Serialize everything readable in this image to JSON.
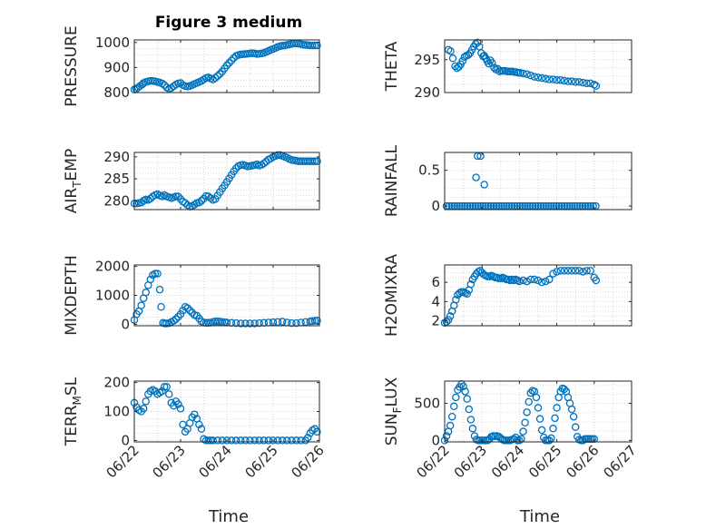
{
  "figure": {
    "title": "Figure 3 medium",
    "xlabel_left": "Time",
    "xlabel_right": "Time"
  },
  "colors": {
    "marker": "#0072BD",
    "axis": "#262626",
    "grid": "#D9D9D9"
  },
  "chart_data": [
    {
      "type": "scatter",
      "ylabel": "PRESSURE",
      "ylabel_sub": "",
      "ylabel_post": "",
      "ylim": [
        800,
        1010
      ],
      "yticks": [
        800,
        900,
        1000
      ],
      "xlim": [
        "06/22",
        "06/26"
      ],
      "xticks": [
        "06/22",
        "06/23",
        "06/24",
        "06/25",
        "06/26"
      ],
      "x": [
        0.0,
        0.04,
        0.08,
        0.12,
        0.17,
        0.2,
        0.25,
        0.3,
        0.35,
        0.4,
        0.45,
        0.5,
        0.55,
        0.6,
        0.65,
        0.7,
        0.75,
        0.8,
        0.85,
        0.9,
        0.95,
        1.0,
        1.05,
        1.1,
        1.15,
        1.2,
        1.25,
        1.3,
        1.35,
        1.4,
        1.45,
        1.5,
        1.55,
        1.6,
        1.65,
        1.7,
        1.75,
        1.8,
        1.85,
        1.9,
        1.95,
        2.0,
        2.05,
        2.1,
        2.15,
        2.2,
        2.25,
        2.3,
        2.35,
        2.4,
        2.45,
        2.5,
        2.55,
        2.6,
        2.65,
        2.7,
        2.75,
        2.8,
        2.85,
        2.9,
        2.95,
        3.0,
        3.05,
        3.1,
        3.15,
        3.2,
        3.25,
        3.3,
        3.35,
        3.4,
        3.45,
        3.5,
        3.55,
        3.6,
        3.65,
        3.7,
        3.75,
        3.8,
        3.85,
        3.9,
        3.95
      ],
      "y": [
        812,
        815,
        820,
        826,
        832,
        838,
        842,
        845,
        846,
        846,
        845,
        842,
        840,
        836,
        830,
        820,
        815,
        818,
        825,
        832,
        836,
        838,
        830,
        826,
        824,
        826,
        830,
        834,
        838,
        842,
        846,
        852,
        858,
        860,
        856,
        852,
        858,
        866,
        874,
        884,
        896,
        908,
        918,
        928,
        938,
        946,
        950,
        952,
        953,
        954,
        955,
        956,
        957,
        956,
        954,
        955,
        956,
        958,
        962,
        966,
        970,
        974,
        978,
        982,
        985,
        987,
        988,
        990,
        992,
        994,
        996,
        996,
        995,
        993,
        991,
        990,
        989,
        988,
        988,
        988,
        988
      ]
    },
    {
      "type": "scatter",
      "ylabel": "THETA",
      "ylabel_sub": "",
      "ylabel_post": "",
      "ylim": [
        290,
        298
      ],
      "yticks": [
        290,
        295
      ],
      "xlim": [
        "06/22",
        "06/27"
      ],
      "xticks": [
        "06/22",
        "06/23",
        "06/24",
        "06/25",
        "06/26",
        "06/27"
      ],
      "x": [
        0.1,
        0.16,
        0.22,
        0.28,
        0.33,
        0.38,
        0.43,
        0.48,
        0.53,
        0.58,
        0.63,
        0.68,
        0.73,
        0.78,
        0.83,
        0.88,
        0.93,
        0.98,
        1.03,
        1.06,
        1.1,
        1.14,
        1.18,
        1.22,
        1.27,
        1.32,
        1.37,
        1.42,
        1.47,
        1.52,
        1.57,
        1.62,
        1.67,
        1.72,
        1.77,
        1.82,
        1.87,
        1.92,
        1.97,
        2.02,
        2.1,
        2.2,
        2.3,
        2.4,
        2.5,
        2.6,
        2.7,
        2.8,
        2.9,
        3.0,
        3.1,
        3.2,
        3.3,
        3.4,
        3.5,
        3.6,
        3.7,
        3.8,
        3.9,
        4.0,
        4.05
      ],
      "y": [
        296.5,
        296.3,
        295.2,
        294.0,
        293.7,
        293.9,
        294.3,
        294.8,
        295.4,
        295.6,
        295.7,
        296.0,
        296.5,
        297.0,
        297.4,
        297.6,
        297.0,
        296.0,
        295.5,
        295.6,
        295.2,
        294.8,
        294.4,
        294.9,
        294.5,
        293.8,
        293.5,
        293.6,
        293.2,
        293.3,
        293.3,
        293.3,
        293.2,
        293.2,
        293.2,
        293.2,
        293.1,
        293.1,
        293.0,
        293.0,
        292.9,
        292.8,
        292.6,
        292.4,
        292.3,
        292.2,
        292.1,
        292.0,
        292.0,
        291.9,
        291.9,
        291.8,
        291.7,
        291.7,
        291.6,
        291.6,
        291.5,
        291.4,
        291.4,
        291.2,
        291.0
      ]
    },
    {
      "type": "scatter",
      "ylabel": "AIR",
      "ylabel_sub": "T",
      "ylabel_post": "EMP",
      "ylim": [
        278,
        291
      ],
      "yticks": [
        280,
        285,
        290
      ],
      "xlim": [
        "06/22",
        "06/26"
      ],
      "xticks": [
        "06/22",
        "06/23",
        "06/24",
        "06/25",
        "06/26"
      ],
      "x": [
        0.0,
        0.05,
        0.1,
        0.15,
        0.2,
        0.25,
        0.3,
        0.35,
        0.4,
        0.45,
        0.5,
        0.55,
        0.6,
        0.65,
        0.7,
        0.75,
        0.8,
        0.85,
        0.9,
        0.95,
        1.0,
        1.05,
        1.1,
        1.15,
        1.2,
        1.25,
        1.3,
        1.35,
        1.4,
        1.45,
        1.5,
        1.55,
        1.6,
        1.65,
        1.7,
        1.75,
        1.8,
        1.85,
        1.9,
        1.95,
        2.0,
        2.05,
        2.1,
        2.15,
        2.2,
        2.25,
        2.3,
        2.35,
        2.4,
        2.45,
        2.5,
        2.55,
        2.6,
        2.65,
        2.7,
        2.75,
        2.8,
        2.85,
        2.9,
        2.95,
        3.0,
        3.05,
        3.1,
        3.15,
        3.2,
        3.25,
        3.3,
        3.35,
        3.4,
        3.45,
        3.5,
        3.55,
        3.6,
        3.65,
        3.7,
        3.75,
        3.8,
        3.85,
        3.9,
        3.95
      ],
      "y": [
        279.4,
        279.4,
        279.5,
        279.6,
        280.0,
        280.3,
        280.2,
        280.5,
        281.0,
        281.3,
        281.5,
        281.2,
        281.0,
        281.3,
        281.0,
        280.8,
        280.6,
        280.8,
        281.0,
        281.0,
        280.4,
        279.8,
        279.5,
        279.0,
        278.7,
        278.8,
        279.1,
        279.5,
        279.6,
        280.0,
        280.5,
        281.1,
        281.0,
        280.6,
        280.2,
        280.4,
        281.2,
        282.0,
        282.8,
        283.5,
        284.3,
        285.1,
        285.9,
        286.7,
        287.4,
        287.9,
        288.1,
        288.2,
        288.0,
        287.8,
        287.9,
        288.0,
        288.1,
        288.3,
        288.0,
        288.2,
        288.5,
        288.9,
        289.4,
        289.6,
        290.0,
        290.2,
        290.4,
        290.4,
        290.2,
        290.0,
        289.8,
        289.5,
        289.3,
        289.2,
        289.1,
        289.0,
        289.0,
        289.0,
        289.0,
        289.0,
        289.0,
        289.0,
        289.0,
        289.0
      ]
    },
    {
      "type": "scatter",
      "ylabel": "RAINFALL",
      "ylabel_sub": "",
      "ylabel_post": "",
      "ylim": [
        -0.05,
        0.75
      ],
      "yticks": [
        0,
        0.5
      ],
      "xlim": [
        "06/22",
        "06/27"
      ],
      "xticks": [
        "06/22",
        "06/23",
        "06/24",
        "06/25",
        "06/26",
        "06/27"
      ],
      "x": [
        0.05,
        0.12,
        0.19,
        0.26,
        0.33,
        0.4,
        0.47,
        0.54,
        0.61,
        0.68,
        0.75,
        0.82,
        0.89,
        0.96,
        1.03,
        1.1,
        1.17,
        1.24,
        1.31,
        1.38,
        1.45,
        1.52,
        1.59,
        1.66,
        1.73,
        1.8,
        1.87,
        1.94,
        2.01,
        2.08,
        2.15,
        2.22,
        2.29,
        2.36,
        2.43,
        2.5,
        2.57,
        2.64,
        2.71,
        2.78,
        2.85,
        2.92,
        2.99,
        3.06,
        3.13,
        3.2,
        3.27,
        3.34,
        3.41,
        3.48,
        3.55,
        3.62,
        3.69,
        3.76,
        3.83,
        3.9,
        3.97,
        4.04,
        0.84,
        0.88,
        0.96,
        1.06
      ],
      "y": [
        0,
        0,
        0,
        0,
        0,
        0,
        0,
        0,
        0,
        0,
        0,
        0,
        0,
        0,
        0,
        0,
        0,
        0,
        0,
        0,
        0,
        0,
        0,
        0,
        0,
        0,
        0,
        0,
        0,
        0,
        0,
        0,
        0,
        0,
        0,
        0,
        0,
        0,
        0,
        0,
        0,
        0,
        0,
        0,
        0,
        0,
        0,
        0,
        0,
        0,
        0,
        0,
        0,
        0,
        0,
        0,
        0,
        0,
        0.4,
        0.7,
        0.7,
        0.3
      ]
    },
    {
      "type": "scatter",
      "ylabel": "MIXDEPTH",
      "ylabel_sub": "",
      "ylabel_post": "",
      "ylim": [
        -50,
        2050
      ],
      "yticks": [
        0,
        1000,
        2000
      ],
      "xlim": [
        "06/22",
        "06/26"
      ],
      "xticks": [
        "06/22",
        "06/23",
        "06/24",
        "06/25",
        "06/26"
      ],
      "x": [
        0.0,
        0.05,
        0.1,
        0.15,
        0.2,
        0.25,
        0.3,
        0.35,
        0.4,
        0.45,
        0.5,
        0.55,
        0.58,
        0.62,
        0.66,
        0.7,
        0.75,
        0.8,
        0.85,
        0.9,
        0.95,
        1.0,
        1.05,
        1.1,
        1.15,
        1.2,
        1.25,
        1.3,
        1.35,
        1.4,
        1.45,
        1.5,
        1.55,
        1.6,
        1.65,
        1.7,
        1.75,
        1.8,
        1.85,
        1.9,
        1.95,
        2.0,
        2.1,
        2.2,
        2.3,
        2.4,
        2.5,
        2.6,
        2.7,
        2.8,
        2.9,
        3.0,
        3.1,
        3.2,
        3.3,
        3.4,
        3.5,
        3.6,
        3.7,
        3.8,
        3.85,
        3.9,
        3.95
      ],
      "y": [
        150,
        350,
        450,
        650,
        900,
        1100,
        1350,
        1550,
        1700,
        1750,
        1750,
        1200,
        600,
        50,
        30,
        30,
        40,
        80,
        120,
        180,
        260,
        350,
        480,
        600,
        560,
        480,
        400,
        320,
        300,
        200,
        100,
        60,
        50,
        50,
        60,
        80,
        100,
        100,
        90,
        80,
        70,
        60,
        50,
        40,
        30,
        30,
        30,
        30,
        40,
        50,
        60,
        70,
        80,
        90,
        60,
        40,
        40,
        60,
        80,
        100,
        110,
        120,
        130
      ]
    },
    {
      "type": "scatter",
      "ylabel": "H2OMIXRA",
      "ylabel_sub": "",
      "ylabel_post": "",
      "ylim": [
        1.5,
        7.8
      ],
      "yticks": [
        2,
        4,
        6
      ],
      "xlim": [
        "06/22",
        "06/27"
      ],
      "xticks": [
        "06/22",
        "06/23",
        "06/24",
        "06/25",
        "06/26",
        "06/27"
      ],
      "x": [
        0.0,
        0.05,
        0.1,
        0.15,
        0.2,
        0.25,
        0.3,
        0.35,
        0.4,
        0.45,
        0.5,
        0.55,
        0.6,
        0.65,
        0.7,
        0.75,
        0.8,
        0.85,
        0.9,
        0.95,
        1.0,
        1.05,
        1.1,
        1.15,
        1.2,
        1.25,
        1.3,
        1.35,
        1.4,
        1.45,
        1.5,
        1.55,
        1.6,
        1.65,
        1.7,
        1.75,
        1.8,
        1.85,
        1.9,
        1.95,
        2.0,
        2.1,
        2.2,
        2.3,
        2.4,
        2.5,
        2.6,
        2.7,
        2.8,
        2.9,
        3.0,
        3.1,
        3.2,
        3.3,
        3.4,
        3.5,
        3.6,
        3.7,
        3.8,
        3.9,
        4.0,
        4.05
      ],
      "y": [
        1.8,
        1.9,
        2.1,
        2.5,
        3.0,
        3.6,
        4.2,
        4.7,
        4.9,
        5.0,
        5.0,
        4.9,
        4.8,
        5.2,
        5.8,
        6.3,
        6.6,
        6.9,
        7.1,
        7.2,
        7.0,
        6.8,
        6.7,
        6.6,
        6.6,
        6.7,
        6.6,
        6.5,
        6.5,
        6.4,
        6.4,
        6.5,
        6.4,
        6.3,
        6.3,
        6.2,
        6.3,
        6.2,
        6.3,
        6.2,
        6.1,
        6.2,
        6.1,
        6.3,
        6.3,
        6.2,
        6.0,
        6.1,
        6.3,
        6.9,
        7.1,
        7.2,
        7.2,
        7.2,
        7.2,
        7.2,
        7.2,
        7.1,
        7.2,
        7.2,
        6.5,
        6.2
      ]
    },
    {
      "type": "scatter",
      "ylabel": "TERR",
      "ylabel_sub": "M",
      "ylabel_post": "SL",
      "ylim": [
        -5,
        205
      ],
      "yticks": [
        0,
        100,
        200
      ],
      "xlim": [
        "06/22",
        "06/26"
      ],
      "xticks": [
        "06/22",
        "06/23",
        "06/24",
        "06/25",
        "06/26"
      ],
      "x": [
        0.0,
        0.05,
        0.1,
        0.15,
        0.2,
        0.25,
        0.3,
        0.35,
        0.4,
        0.45,
        0.5,
        0.55,
        0.6,
        0.65,
        0.7,
        0.75,
        0.8,
        0.85,
        0.9,
        0.95,
        1.0,
        1.05,
        1.1,
        1.15,
        1.2,
        1.25,
        1.3,
        1.35,
        1.4,
        1.45,
        1.5,
        1.55,
        1.6,
        1.65,
        1.7,
        1.8,
        1.9,
        2.0,
        2.1,
        2.2,
        2.3,
        2.4,
        2.5,
        2.6,
        2.7,
        2.8,
        2.9,
        3.0,
        3.1,
        3.2,
        3.3,
        3.4,
        3.5,
        3.6,
        3.7,
        3.75,
        3.8,
        3.85,
        3.9,
        3.95
      ],
      "y": [
        130,
        115,
        105,
        100,
        110,
        135,
        160,
        170,
        175,
        170,
        160,
        165,
        170,
        185,
        185,
        160,
        130,
        120,
        135,
        125,
        110,
        55,
        30,
        40,
        60,
        80,
        90,
        75,
        55,
        40,
        5,
        0,
        0,
        0,
        0,
        0,
        0,
        0,
        0,
        0,
        0,
        0,
        0,
        0,
        0,
        0,
        0,
        0,
        0,
        0,
        0,
        0,
        0,
        0,
        0,
        10,
        25,
        35,
        40,
        30
      ]
    },
    {
      "type": "scatter",
      "ylabel": "SUN",
      "ylabel_sub": "F",
      "ylabel_post": "LUX",
      "ylim": [
        -20,
        800
      ],
      "yticks": [
        0,
        500
      ],
      "xlim": [
        "06/22",
        "06/27"
      ],
      "xticks": [
        "06/22",
        "06/23",
        "06/24",
        "06/25",
        "06/26",
        "06/27"
      ],
      "x": [
        0.0,
        0.05,
        0.1,
        0.15,
        0.2,
        0.25,
        0.3,
        0.35,
        0.4,
        0.45,
        0.5,
        0.55,
        0.6,
        0.65,
        0.7,
        0.75,
        0.8,
        0.85,
        0.9,
        0.95,
        1.0,
        1.05,
        1.1,
        1.15,
        1.2,
        1.25,
        1.3,
        1.35,
        1.4,
        1.45,
        1.5,
        1.55,
        1.6,
        1.65,
        1.7,
        1.75,
        1.8,
        1.85,
        1.9,
        1.95,
        2.0,
        2.05,
        2.1,
        2.15,
        2.2,
        2.25,
        2.3,
        2.35,
        2.4,
        2.45,
        2.5,
        2.55,
        2.6,
        2.65,
        2.7,
        2.75,
        2.8,
        2.85,
        2.9,
        2.95,
        3.0,
        3.05,
        3.1,
        3.15,
        3.2,
        3.25,
        3.3,
        3.35,
        3.4,
        3.45,
        3.5,
        3.55,
        3.6,
        3.65,
        3.7,
        3.75,
        3.8,
        3.85,
        3.9,
        3.95,
        4.0
      ],
      "y": [
        0,
        60,
        120,
        200,
        320,
        460,
        580,
        680,
        720,
        760,
        730,
        660,
        560,
        420,
        280,
        160,
        60,
        10,
        0,
        0,
        0,
        0,
        0,
        0,
        20,
        50,
        60,
        55,
        60,
        50,
        30,
        10,
        0,
        0,
        0,
        0,
        10,
        20,
        40,
        0,
        0,
        20,
        120,
        240,
        380,
        520,
        640,
        670,
        660,
        580,
        440,
        290,
        140,
        40,
        0,
        0,
        0,
        30,
        160,
        300,
        440,
        580,
        660,
        700,
        690,
        660,
        580,
        500,
        420,
        320,
        180,
        50,
        10,
        0,
        0,
        20,
        20,
        20,
        20,
        20,
        20
      ]
    }
  ]
}
